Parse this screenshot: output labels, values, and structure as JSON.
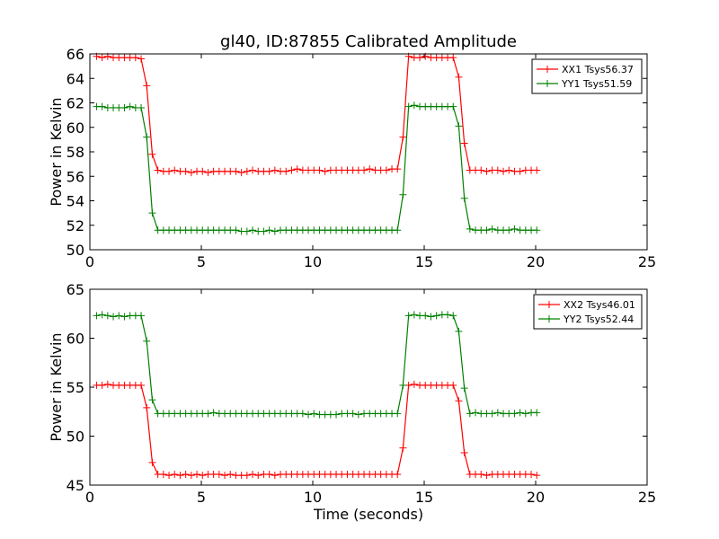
{
  "chart_data": [
    {
      "type": "line",
      "title": "gl40, ID:87855 Calibrated Amplitude",
      "xlabel": "",
      "ylabel": "Power in Kelvin",
      "xlim": [
        0,
        25
      ],
      "ylim": [
        50,
        66
      ],
      "x_ticks": [
        0,
        5,
        10,
        15,
        20,
        25
      ],
      "y_ticks": [
        50,
        52,
        54,
        56,
        58,
        60,
        62,
        64,
        66
      ],
      "grid": false,
      "legend_position": "top-right",
      "series": [
        {
          "name": "XX1 Tsys56.37",
          "color": "#ff0000",
          "marker": "+",
          "x": [
            0.3,
            0.55,
            0.8,
            1.05,
            1.3,
            1.55,
            1.8,
            2.05,
            2.3,
            2.55,
            2.8,
            3.05,
            3.3,
            3.55,
            3.8,
            4.05,
            4.3,
            4.55,
            4.8,
            5.05,
            5.3,
            5.55,
            5.8,
            6.05,
            6.3,
            6.55,
            6.8,
            7.05,
            7.3,
            7.55,
            7.8,
            8.05,
            8.3,
            8.55,
            8.8,
            9.05,
            9.3,
            9.55,
            9.8,
            10.05,
            10.3,
            10.55,
            10.8,
            11.05,
            11.3,
            11.55,
            11.8,
            12.05,
            12.3,
            12.55,
            12.8,
            13.05,
            13.3,
            13.55,
            13.8,
            14.05,
            14.3,
            14.55,
            14.8,
            15.05,
            15.3,
            15.55,
            15.8,
            16.05,
            16.3,
            16.55,
            16.8,
            17.05,
            17.3,
            17.55,
            17.8,
            18.05,
            18.3,
            18.55,
            18.8,
            19.05,
            19.3,
            19.55,
            19.8,
            20.05
          ],
          "y": [
            65.8,
            65.7,
            65.8,
            65.7,
            65.7,
            65.7,
            65.7,
            65.7,
            65.6,
            63.4,
            57.8,
            56.5,
            56.4,
            56.4,
            56.5,
            56.4,
            56.4,
            56.3,
            56.4,
            56.4,
            56.3,
            56.4,
            56.4,
            56.4,
            56.4,
            56.4,
            56.3,
            56.4,
            56.5,
            56.4,
            56.4,
            56.4,
            56.5,
            56.4,
            56.4,
            56.5,
            56.6,
            56.5,
            56.5,
            56.5,
            56.5,
            56.4,
            56.5,
            56.5,
            56.5,
            56.5,
            56.5,
            56.5,
            56.5,
            56.6,
            56.5,
            56.5,
            56.5,
            56.6,
            56.6,
            59.2,
            65.8,
            65.7,
            65.7,
            65.8,
            65.7,
            65.7,
            65.7,
            65.7,
            65.7,
            64.1,
            58.7,
            56.5,
            56.5,
            56.5,
            56.4,
            56.5,
            56.5,
            56.4,
            56.5,
            56.4,
            56.4,
            56.5,
            56.5,
            56.5
          ]
        },
        {
          "name": "YY1 Tsys51.59",
          "color": "#008000",
          "marker": "+",
          "x": [
            0.3,
            0.55,
            0.8,
            1.05,
            1.3,
            1.55,
            1.8,
            2.05,
            2.3,
            2.55,
            2.8,
            3.05,
            3.3,
            3.55,
            3.8,
            4.05,
            4.3,
            4.55,
            4.8,
            5.05,
            5.3,
            5.55,
            5.8,
            6.05,
            6.3,
            6.55,
            6.8,
            7.05,
            7.3,
            7.55,
            7.8,
            8.05,
            8.3,
            8.55,
            8.8,
            9.05,
            9.3,
            9.55,
            9.8,
            10.05,
            10.3,
            10.55,
            10.8,
            11.05,
            11.3,
            11.55,
            11.8,
            12.05,
            12.3,
            12.55,
            12.8,
            13.05,
            13.3,
            13.55,
            13.8,
            14.05,
            14.3,
            14.55,
            14.8,
            15.05,
            15.3,
            15.55,
            15.8,
            16.05,
            16.3,
            16.55,
            16.8,
            17.05,
            17.3,
            17.55,
            17.8,
            18.05,
            18.3,
            18.55,
            18.8,
            19.05,
            19.3,
            19.55,
            19.8,
            20.05
          ],
          "y": [
            61.7,
            61.7,
            61.6,
            61.6,
            61.6,
            61.6,
            61.7,
            61.6,
            61.6,
            59.2,
            53.0,
            51.6,
            51.6,
            51.6,
            51.6,
            51.6,
            51.6,
            51.6,
            51.6,
            51.6,
            51.6,
            51.6,
            51.6,
            51.6,
            51.6,
            51.6,
            51.5,
            51.5,
            51.6,
            51.5,
            51.5,
            51.6,
            51.5,
            51.6,
            51.6,
            51.6,
            51.6,
            51.6,
            51.6,
            51.6,
            51.6,
            51.6,
            51.6,
            51.6,
            51.6,
            51.6,
            51.6,
            51.6,
            51.6,
            51.6,
            51.6,
            51.6,
            51.6,
            51.6,
            51.6,
            54.5,
            61.7,
            61.8,
            61.7,
            61.7,
            61.7,
            61.7,
            61.7,
            61.7,
            61.7,
            60.1,
            54.2,
            51.7,
            51.6,
            51.6,
            51.6,
            51.7,
            51.6,
            51.6,
            51.6,
            51.7,
            51.6,
            51.6,
            51.6,
            51.6
          ]
        }
      ]
    },
    {
      "type": "line",
      "title": "",
      "xlabel": "Time (seconds)",
      "ylabel": "Power in Kelvin",
      "xlim": [
        0,
        25
      ],
      "ylim": [
        45,
        65
      ],
      "x_ticks": [
        0,
        5,
        10,
        15,
        20,
        25
      ],
      "y_ticks": [
        45,
        50,
        55,
        60,
        65
      ],
      "grid": false,
      "legend_position": "top-right",
      "series": [
        {
          "name": "XX2 Tsys46.01",
          "color": "#ff0000",
          "marker": "+",
          "x": [
            0.3,
            0.55,
            0.8,
            1.05,
            1.3,
            1.55,
            1.8,
            2.05,
            2.3,
            2.55,
            2.8,
            3.05,
            3.3,
            3.55,
            3.8,
            4.05,
            4.3,
            4.55,
            4.8,
            5.05,
            5.3,
            5.55,
            5.8,
            6.05,
            6.3,
            6.55,
            6.8,
            7.05,
            7.3,
            7.55,
            7.8,
            8.05,
            8.3,
            8.55,
            8.8,
            9.05,
            9.3,
            9.55,
            9.8,
            10.05,
            10.3,
            10.55,
            10.8,
            11.05,
            11.3,
            11.55,
            11.8,
            12.05,
            12.3,
            12.55,
            12.8,
            13.05,
            13.3,
            13.55,
            13.8,
            14.05,
            14.3,
            14.55,
            14.8,
            15.05,
            15.3,
            15.55,
            15.8,
            16.05,
            16.3,
            16.55,
            16.8,
            17.05,
            17.3,
            17.55,
            17.8,
            18.05,
            18.3,
            18.55,
            18.8,
            19.05,
            19.3,
            19.55,
            19.8,
            20.05
          ],
          "y": [
            55.2,
            55.2,
            55.3,
            55.2,
            55.2,
            55.2,
            55.2,
            55.2,
            55.2,
            52.9,
            47.3,
            46.1,
            46.1,
            46.0,
            46.1,
            46.0,
            46.1,
            46.0,
            46.1,
            46.0,
            46.1,
            46.1,
            46.1,
            46.0,
            46.1,
            46.0,
            46.0,
            46.0,
            46.1,
            46.0,
            46.1,
            46.1,
            46.0,
            46.1,
            46.1,
            46.1,
            46.1,
            46.1,
            46.1,
            46.1,
            46.1,
            46.1,
            46.1,
            46.1,
            46.1,
            46.1,
            46.1,
            46.1,
            46.1,
            46.1,
            46.1,
            46.1,
            46.1,
            46.1,
            46.1,
            48.8,
            55.2,
            55.3,
            55.2,
            55.2,
            55.2,
            55.2,
            55.2,
            55.2,
            55.2,
            53.6,
            48.3,
            46.1,
            46.1,
            46.1,
            46.0,
            46.1,
            46.1,
            46.1,
            46.1,
            46.1,
            46.1,
            46.1,
            46.1,
            46.0
          ]
        },
        {
          "name": "YY2 Tsys52.44",
          "color": "#008000",
          "marker": "+",
          "x": [
            0.3,
            0.55,
            0.8,
            1.05,
            1.3,
            1.55,
            1.8,
            2.05,
            2.3,
            2.55,
            2.8,
            3.05,
            3.3,
            3.55,
            3.8,
            4.05,
            4.3,
            4.55,
            4.8,
            5.05,
            5.3,
            5.55,
            5.8,
            6.05,
            6.3,
            6.55,
            6.8,
            7.05,
            7.3,
            7.55,
            7.8,
            8.05,
            8.3,
            8.55,
            8.8,
            9.05,
            9.3,
            9.55,
            9.8,
            10.05,
            10.3,
            10.55,
            10.8,
            11.05,
            11.3,
            11.55,
            11.8,
            12.05,
            12.3,
            12.55,
            12.8,
            13.05,
            13.3,
            13.55,
            13.8,
            14.05,
            14.3,
            14.55,
            14.8,
            15.05,
            15.3,
            15.55,
            15.8,
            16.05,
            16.3,
            16.55,
            16.8,
            17.05,
            17.3,
            17.55,
            17.8,
            18.05,
            18.3,
            18.55,
            18.8,
            19.05,
            19.3,
            19.55,
            19.8,
            20.05
          ],
          "y": [
            62.3,
            62.4,
            62.3,
            62.2,
            62.3,
            62.2,
            62.3,
            62.3,
            62.3,
            59.7,
            53.7,
            52.3,
            52.3,
            52.3,
            52.3,
            52.3,
            52.3,
            52.3,
            52.3,
            52.3,
            52.3,
            52.4,
            52.3,
            52.3,
            52.3,
            52.3,
            52.3,
            52.3,
            52.3,
            52.3,
            52.3,
            52.3,
            52.3,
            52.3,
            52.3,
            52.3,
            52.3,
            52.3,
            52.2,
            52.3,
            52.2,
            52.2,
            52.2,
            52.2,
            52.3,
            52.3,
            52.3,
            52.2,
            52.3,
            52.3,
            52.3,
            52.3,
            52.3,
            52.3,
            52.3,
            55.2,
            62.3,
            62.4,
            62.3,
            62.3,
            62.2,
            62.3,
            62.4,
            62.4,
            62.3,
            60.7,
            54.9,
            52.3,
            52.4,
            52.3,
            52.3,
            52.3,
            52.4,
            52.3,
            52.3,
            52.3,
            52.4,
            52.3,
            52.4,
            52.4
          ]
        }
      ]
    }
  ]
}
